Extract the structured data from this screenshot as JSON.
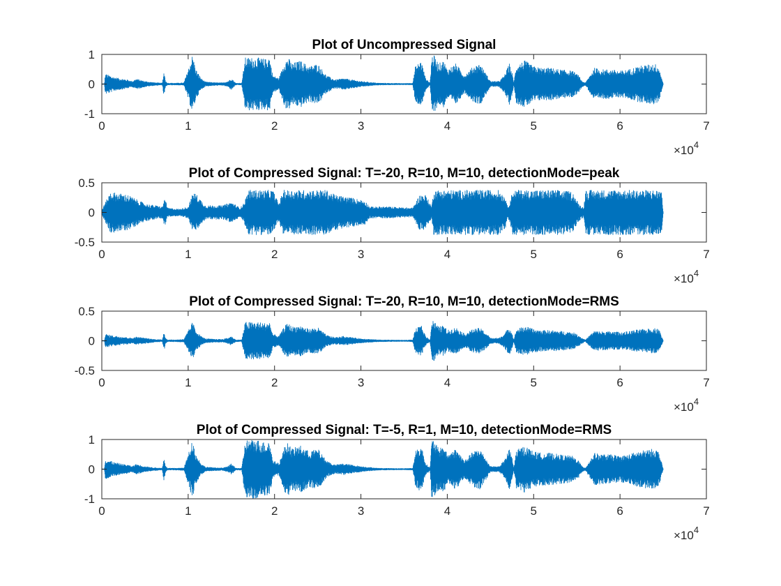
{
  "figure": {
    "background": "#ffffff",
    "line_color": "#0072BD",
    "axis_color": "#262626"
  },
  "chart_data": [
    {
      "type": "line",
      "title": "Plot of Uncompressed Signal",
      "xlabel": "",
      "ylabel": "",
      "xlim": [
        0,
        70000
      ],
      "ylim": [
        -1,
        1
      ],
      "xticks": [
        0,
        10000,
        20000,
        30000,
        40000,
        50000,
        60000,
        70000
      ],
      "xtick_labels": [
        "0",
        "1",
        "2",
        "3",
        "4",
        "5",
        "6",
        "7"
      ],
      "yticks": [
        -1,
        0,
        1
      ],
      "ytick_labels": [
        "-1",
        "0",
        "1"
      ],
      "x_exponent_base": "10",
      "x_exponent": "4",
      "series": [
        {
          "color": "#0072BD",
          "samples": 65000,
          "envelope_x": [
            0,
            300,
            400,
            900,
            1300,
            2000,
            3000,
            3500,
            4000,
            5000,
            6000,
            7000,
            7200,
            7400,
            7600,
            8500,
            9500,
            10100,
            10500,
            10900,
            11500,
            12000,
            13000,
            14000,
            14600,
            15000,
            15500,
            16200,
            16600,
            16800,
            18000,
            19000,
            19400,
            19800,
            20500,
            21200,
            21600,
            22000,
            23000,
            24000,
            25000,
            26000,
            27000,
            28000,
            29000,
            30000,
            32000,
            35000,
            36000,
            36300,
            37000,
            37500,
            38000,
            38200,
            38400,
            39000,
            39600,
            40000,
            41000,
            42000,
            43000,
            43800,
            44600,
            45000,
            46000,
            46600,
            47200,
            47500,
            47700,
            48000,
            49000,
            50000,
            51000,
            52000,
            53000,
            54500,
            55200,
            55600,
            56000,
            57000,
            58000,
            59000,
            60000,
            61000,
            61500,
            62000,
            63000,
            64000,
            64500,
            65000
          ],
          "envelope_amp": [
            0.02,
            0.02,
            0.35,
            0.3,
            0.25,
            0.2,
            0.15,
            0.1,
            0.18,
            0.1,
            0.06,
            0.04,
            0.45,
            0.1,
            0.04,
            0.04,
            0.05,
            0.6,
            1.0,
            0.5,
            0.2,
            0.08,
            0.06,
            0.05,
            0.1,
            0.2,
            0.04,
            0.04,
            0.9,
            0.9,
            0.9,
            0.85,
            0.95,
            0.3,
            0.2,
            0.8,
            0.9,
            0.7,
            0.8,
            0.6,
            0.7,
            0.3,
            0.15,
            0.2,
            0.15,
            0.1,
            0.04,
            0.03,
            0.04,
            0.6,
            0.8,
            0.2,
            0.05,
            0.95,
            1.0,
            0.7,
            0.8,
            0.5,
            0.7,
            0.3,
            0.6,
            0.7,
            0.3,
            0.1,
            0.1,
            0.3,
            0.7,
            0.4,
            0.05,
            0.65,
            0.8,
            0.6,
            0.55,
            0.55,
            0.5,
            0.45,
            0.3,
            0.1,
            0.05,
            0.55,
            0.5,
            0.5,
            0.45,
            0.5,
            0.55,
            0.6,
            0.65,
            0.7,
            0.6,
            0.02
          ]
        }
      ]
    },
    {
      "type": "line",
      "title": "Plot of Compressed Signal: T=-20, R=10, M=10, detectionMode=peak",
      "xlabel": "",
      "ylabel": "",
      "xlim": [
        0,
        70000
      ],
      "ylim": [
        -0.5,
        0.5
      ],
      "xticks": [
        0,
        10000,
        20000,
        30000,
        40000,
        50000,
        60000,
        70000
      ],
      "xtick_labels": [
        "0",
        "1",
        "2",
        "3",
        "4",
        "5",
        "6",
        "7"
      ],
      "yticks": [
        -0.5,
        0,
        0.5
      ],
      "ytick_labels": [
        "-0.5",
        "0",
        "0.5"
      ],
      "x_exponent_base": "10",
      "x_exponent": "4",
      "series": [
        {
          "color": "#0072BD",
          "samples": 65000,
          "envelope_x": [
            0,
            1000,
            3000,
            5000,
            7000,
            7300,
            7600,
            9000,
            10000,
            10600,
            11000,
            12000,
            14000,
            15000,
            16000,
            16400,
            17000,
            19800,
            20500,
            21000,
            23000,
            26000,
            27000,
            29000,
            30500,
            31000,
            33000,
            36000,
            36800,
            37500,
            38200,
            38400,
            40000,
            43000,
            46000,
            46800,
            47000,
            47600,
            48000,
            53000,
            54500,
            55200,
            55800,
            56000,
            60000,
            64800,
            65000
          ],
          "envelope_amp": [
            0.05,
            0.35,
            0.3,
            0.15,
            0.1,
            0.25,
            0.08,
            0.06,
            0.1,
            0.35,
            0.3,
            0.12,
            0.12,
            0.18,
            0.08,
            0.15,
            0.38,
            0.38,
            0.15,
            0.38,
            0.38,
            0.38,
            0.3,
            0.25,
            0.2,
            0.1,
            0.1,
            0.08,
            0.3,
            0.3,
            0.1,
            0.38,
            0.38,
            0.38,
            0.38,
            0.25,
            0.08,
            0.38,
            0.38,
            0.38,
            0.35,
            0.15,
            0.08,
            0.38,
            0.38,
            0.38,
            0.02
          ]
        }
      ]
    },
    {
      "type": "line",
      "title": "Plot of Compressed Signal: T=-20, R=10, M=10, detectionMode=RMS",
      "xlabel": "",
      "ylabel": "",
      "xlim": [
        0,
        70000
      ],
      "ylim": [
        -0.5,
        0.5
      ],
      "xticks": [
        0,
        10000,
        20000,
        30000,
        40000,
        50000,
        60000,
        70000
      ],
      "xtick_labels": [
        "0",
        "1",
        "2",
        "3",
        "4",
        "5",
        "6",
        "7"
      ],
      "yticks": [
        -0.5,
        0,
        0.5
      ],
      "ytick_labels": [
        "-0.5",
        "0",
        "0.5"
      ],
      "x_exponent_base": "10",
      "x_exponent": "4",
      "series": [
        {
          "color": "#0072BD",
          "samples": 65000,
          "envelope_x": [
            0,
            300,
            400,
            900,
            1300,
            2000,
            3000,
            3500,
            4000,
            5000,
            6000,
            7000,
            7200,
            7400,
            7600,
            8500,
            9500,
            10100,
            10500,
            10900,
            11500,
            12000,
            13000,
            14000,
            14600,
            15000,
            15500,
            16200,
            16600,
            16800,
            18000,
            19000,
            19400,
            19800,
            20500,
            21200,
            21600,
            22000,
            23000,
            24000,
            25000,
            26000,
            27000,
            28000,
            29000,
            30000,
            32000,
            35000,
            36000,
            36300,
            37000,
            37500,
            38000,
            38200,
            38400,
            39000,
            39600,
            40000,
            41000,
            42000,
            43000,
            43800,
            44600,
            45000,
            46000,
            46600,
            47200,
            47500,
            47700,
            48000,
            49000,
            50000,
            51000,
            52000,
            53000,
            54500,
            55200,
            55600,
            56000,
            57000,
            58000,
            59000,
            60000,
            61000,
            61500,
            62000,
            63000,
            64000,
            64500,
            65000
          ],
          "envelope_amp": [
            0.01,
            0.01,
            0.12,
            0.1,
            0.09,
            0.08,
            0.06,
            0.05,
            0.07,
            0.05,
            0.03,
            0.02,
            0.17,
            0.05,
            0.02,
            0.02,
            0.03,
            0.2,
            0.32,
            0.18,
            0.08,
            0.04,
            0.03,
            0.03,
            0.05,
            0.08,
            0.02,
            0.02,
            0.32,
            0.32,
            0.32,
            0.3,
            0.33,
            0.12,
            0.08,
            0.26,
            0.3,
            0.24,
            0.26,
            0.2,
            0.23,
            0.1,
            0.06,
            0.08,
            0.06,
            0.04,
            0.02,
            0.015,
            0.02,
            0.2,
            0.26,
            0.08,
            0.02,
            0.34,
            0.35,
            0.24,
            0.26,
            0.18,
            0.23,
            0.12,
            0.2,
            0.22,
            0.12,
            0.05,
            0.05,
            0.12,
            0.24,
            0.14,
            0.02,
            0.2,
            0.25,
            0.2,
            0.18,
            0.18,
            0.17,
            0.15,
            0.1,
            0.05,
            0.02,
            0.17,
            0.16,
            0.16,
            0.15,
            0.16,
            0.18,
            0.19,
            0.2,
            0.22,
            0.2,
            0.01
          ]
        }
      ]
    },
    {
      "type": "line",
      "title": "Plot of Compressed Signal: T=-5, R=1, M=10, detectionMode=RMS",
      "xlabel": "",
      "ylabel": "",
      "xlim": [
        0,
        70000
      ],
      "ylim": [
        -1,
        1
      ],
      "xticks": [
        0,
        10000,
        20000,
        30000,
        40000,
        50000,
        60000,
        70000
      ],
      "xtick_labels": [
        "0",
        "1",
        "2",
        "3",
        "4",
        "5",
        "6",
        "7"
      ],
      "yticks": [
        -1,
        0,
        1
      ],
      "ytick_labels": [
        "-1",
        "0",
        "1"
      ],
      "x_exponent_base": "10",
      "x_exponent": "4",
      "series": [
        {
          "color": "#0072BD",
          "samples": 65000,
          "envelope_x": [
            0,
            300,
            400,
            900,
            1300,
            2000,
            3000,
            3500,
            4000,
            5000,
            6000,
            7000,
            7200,
            7400,
            7600,
            8500,
            9500,
            10100,
            10500,
            10900,
            11500,
            12000,
            13000,
            14000,
            14600,
            15000,
            15500,
            16200,
            16600,
            16800,
            18000,
            19000,
            19400,
            19800,
            20500,
            21200,
            21600,
            22000,
            23000,
            24000,
            25000,
            26000,
            27000,
            28000,
            29000,
            30000,
            32000,
            35000,
            36000,
            36300,
            37000,
            37500,
            38000,
            38200,
            38400,
            39000,
            39600,
            40000,
            41000,
            42000,
            43000,
            43800,
            44600,
            45000,
            46000,
            46600,
            47200,
            47500,
            47700,
            48000,
            49000,
            50000,
            51000,
            52000,
            53000,
            54500,
            55200,
            55600,
            56000,
            57000,
            58000,
            59000,
            60000,
            61000,
            61500,
            62000,
            63000,
            64000,
            64500,
            65000
          ],
          "envelope_amp": [
            0.02,
            0.02,
            0.35,
            0.3,
            0.25,
            0.2,
            0.15,
            0.1,
            0.18,
            0.1,
            0.06,
            0.04,
            0.45,
            0.1,
            0.04,
            0.04,
            0.05,
            0.6,
            1.0,
            0.5,
            0.2,
            0.08,
            0.06,
            0.05,
            0.1,
            0.2,
            0.04,
            0.04,
            0.95,
            1.0,
            1.0,
            0.9,
            1.0,
            0.3,
            0.2,
            0.8,
            0.9,
            0.7,
            0.8,
            0.6,
            0.7,
            0.3,
            0.15,
            0.2,
            0.15,
            0.1,
            0.04,
            0.03,
            0.04,
            0.6,
            0.8,
            0.2,
            0.05,
            1.0,
            1.0,
            0.7,
            0.8,
            0.5,
            0.7,
            0.3,
            0.6,
            0.7,
            0.3,
            0.1,
            0.1,
            0.3,
            0.7,
            0.4,
            0.05,
            0.65,
            0.8,
            0.6,
            0.55,
            0.55,
            0.5,
            0.45,
            0.3,
            0.1,
            0.05,
            0.55,
            0.5,
            0.5,
            0.45,
            0.5,
            0.55,
            0.6,
            0.65,
            0.7,
            0.6,
            0.02
          ]
        }
      ]
    }
  ]
}
